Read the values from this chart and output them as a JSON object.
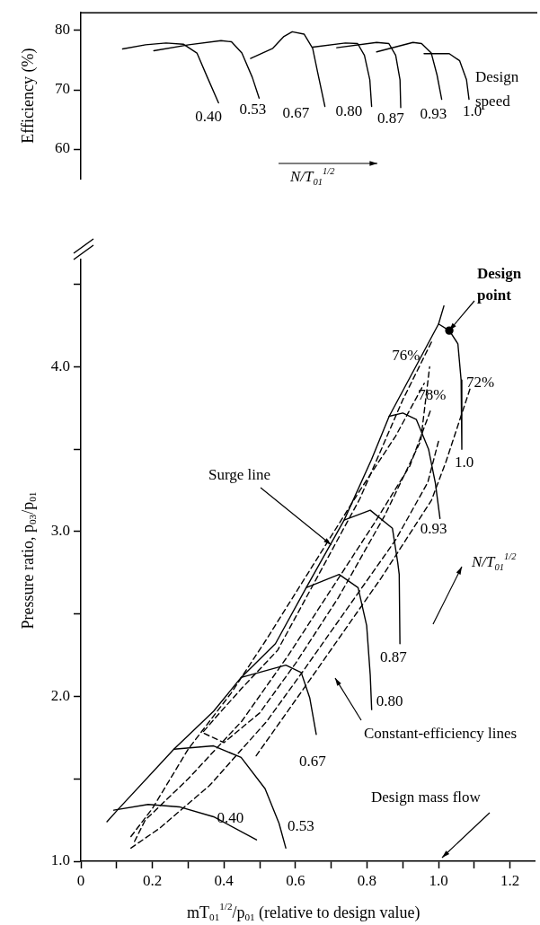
{
  "chart_data": [
    {
      "type": "line",
      "ylabel": "Efficiency (%)",
      "xlim": [
        0,
        1.27
      ],
      "ylim": [
        55,
        83
      ],
      "yticks": [
        60,
        70,
        80
      ],
      "tick_labels": "y",
      "grid": false,
      "legend": false,
      "marker": "none",
      "line_style": "solid",
      "annotations": [
        "Design speed",
        "N/T$_{01}$$^{1/2}$"
      ],
      "series": [
        {
          "name": "0.40",
          "color": "#000000",
          "x": [
            0.116,
            0.18,
            0.237,
            0.285,
            0.323,
            0.352,
            0.383
          ],
          "values": [
            76.9,
            77.6,
            77.9,
            77.7,
            76.2,
            72.1,
            67.8
          ]
        },
        {
          "name": "0.53",
          "color": "#000000",
          "x": [
            0.203,
            0.3,
            0.39,
            0.419,
            0.448,
            0.477,
            0.496
          ],
          "values": [
            76.6,
            77.6,
            78.3,
            78.1,
            76.2,
            72.1,
            68.6
          ]
        },
        {
          "name": "0.67",
          "color": "#000000",
          "x": [
            0.472,
            0.534,
            0.565,
            0.588,
            0.621,
            0.645,
            0.659,
            0.679
          ],
          "values": [
            75.3,
            77.0,
            79.0,
            79.8,
            79.4,
            77.0,
            72.9,
            67.2
          ]
        },
        {
          "name": "0.80",
          "color": "#000000",
          "x": [
            0.645,
            0.736,
            0.77,
            0.789,
            0.804,
            0.809
          ],
          "values": [
            77.2,
            77.9,
            77.8,
            75.8,
            71.7,
            67.2
          ]
        },
        {
          "name": "0.87",
          "color": "#000000",
          "x": [
            0.712,
            0.823,
            0.857,
            0.876,
            0.888,
            0.89
          ],
          "values": [
            77.1,
            78.0,
            77.8,
            75.8,
            71.7,
            67.0
          ]
        },
        {
          "name": "0.93",
          "color": "#000000",
          "x": [
            0.823,
            0.924,
            0.948,
            0.975,
            0.991,
            1.004
          ],
          "values": [
            76.4,
            78.0,
            77.8,
            76.2,
            72.5,
            68.4
          ]
        },
        {
          "name": "1.0",
          "color": "#000000",
          "x": [
            0.955,
            1.025,
            1.054,
            1.073,
            1.08
          ],
          "values": [
            76.1,
            76.1,
            74.9,
            71.7,
            68.4
          ]
        }
      ]
    },
    {
      "type": "line",
      "xlabel": "mT$_{01}$$^{1/2}$/p$_{01}$ (relative to design value)",
      "ylabel": "Pressure ratio, p$_{03}$/p$_{01}$",
      "xlim": [
        0,
        1.27
      ],
      "ylim": [
        1,
        4.65
      ],
      "xticks": [
        0,
        {
          "value": 0.1,
          "label": null
        },
        0.2,
        {
          "value": 0.3,
          "label": null
        },
        0.4,
        {
          "value": 0.5,
          "label": null
        },
        0.6,
        {
          "value": 0.7,
          "label": null
        },
        0.8,
        {
          "value": 0.9,
          "label": null
        },
        {
          "value": 1,
          "label": "1.0"
        },
        {
          "value": 1.1,
          "label": null
        },
        1.2
      ],
      "yticks": [
        {
          "value": 1,
          "label": "1.0"
        },
        {
          "value": 1.5,
          "label": null
        },
        {
          "value": 2,
          "label": "2.0"
        },
        {
          "value": 2.5,
          "label": null
        },
        {
          "value": 3,
          "label": "3.0"
        },
        {
          "value": 3.5,
          "label": null
        },
        {
          "value": 4,
          "label": "4.0"
        },
        {
          "value": 4.5,
          "label": null
        }
      ],
      "grid": false,
      "legend": false,
      "marker": "none",
      "line_style": "solid",
      "annotations": [
        {
          "text": "Design point",
          "x": 1.03,
          "y": 4.22
        },
        {
          "text": "Surge line",
          "x": 0.7,
          "y": 2.92
        },
        "N/T$_{01}$$^{1/2}$",
        "Constant-efficiency lines",
        "Design mass flow"
      ],
      "series": [
        {
          "name": "0.40",
          "color": "#000000",
          "x": [
            0.092,
            0.188,
            0.275,
            0.371,
            0.491
          ],
          "values": [
            1.31,
            1.345,
            1.33,
            1.27,
            1.13
          ]
        },
        {
          "name": "0.53",
          "color": "#000000",
          "x": [
            0.26,
            0.371,
            0.448,
            0.515,
            0.554,
            0.573
          ],
          "values": [
            1.68,
            1.7,
            1.63,
            1.44,
            1.23,
            1.08
          ]
        },
        {
          "name": "0.67",
          "color": "#000000",
          "x": [
            0.448,
            0.573,
            0.616,
            0.64,
            0.658
          ],
          "values": [
            2.115,
            2.19,
            2.145,
            1.99,
            1.77
          ]
        },
        {
          "name": "0.80",
          "color": "#000000",
          "x": [
            0.63,
            0.722,
            0.775,
            0.799,
            0.809,
            0.813
          ],
          "values": [
            2.66,
            2.74,
            2.66,
            2.43,
            2.13,
            1.92
          ]
        },
        {
          "name": "0.87",
          "color": "#000000",
          "x": [
            0.736,
            0.809,
            0.871,
            0.886,
            0.89,
            0.892
          ],
          "values": [
            3.07,
            3.13,
            3.02,
            2.81,
            2.74,
            2.32
          ]
        },
        {
          "name": "0.93",
          "color": "#000000",
          "x": [
            0.862,
            0.9,
            0.938,
            0.972,
            0.991,
            1.004
          ],
          "values": [
            3.7,
            3.72,
            3.68,
            3.5,
            3.295,
            3.08
          ]
        },
        {
          "name": "1.0",
          "color": "#000000",
          "x": [
            1.0,
            1.03,
            1.054,
            1.063,
            1.065
          ],
          "values": [
            4.26,
            4.22,
            4.14,
            3.92,
            3.5
          ]
        },
        {
          "color": "#000000",
          "x": [
            0.073,
            0.102,
            0.26,
            0.371,
            0.448,
            0.544,
            0.63,
            0.736,
            0.813,
            0.862,
            1.0,
            1.015
          ],
          "values": [
            1.24,
            1.31,
            1.68,
            1.91,
            2.115,
            2.32,
            2.66,
            3.07,
            3.44,
            3.7,
            4.26,
            4.37
          ]
        },
        {
          "name": "72%",
          "color": "#000000",
          "line_style": "dashed",
          "x": [
            0.49,
            0.64,
            0.84,
            0.98,
            1.02,
            1.09
          ],
          "values": [
            1.64,
            2.1,
            2.72,
            3.19,
            3.42,
            3.88
          ]
        },
        {
          "color": "#000000",
          "line_style": "dashed",
          "x": [
            0.14,
            0.22,
            0.36,
            0.52,
            0.62,
            0.75,
            0.88,
            0.97,
            1.0
          ],
          "values": [
            1.08,
            1.2,
            1.46,
            1.85,
            2.15,
            2.55,
            2.95,
            3.3,
            3.55
          ]
        },
        {
          "color": "#000000",
          "line_style": "dashed",
          "x": [
            0.15,
            0.18,
            0.3,
            0.45,
            0.58,
            0.7,
            0.82,
            0.92,
            0.98
          ],
          "values": [
            1.12,
            1.25,
            1.5,
            1.85,
            2.25,
            2.65,
            3.05,
            3.4,
            3.75
          ]
        },
        {
          "name": "78%",
          "color": "#000000",
          "line_style": "dashed",
          "x": [
            0.14,
            0.2,
            0.3,
            0.42,
            0.52,
            0.65,
            0.78,
            0.88,
            0.93,
            0.96
          ],
          "values": [
            1.15,
            1.32,
            1.68,
            2.02,
            2.35,
            2.8,
            3.25,
            3.58,
            3.78,
            3.9
          ]
        },
        {
          "name": "76%",
          "color": "#000000",
          "line_style": "dashed",
          "x": [
            0.98,
            0.9,
            0.78,
            0.66,
            0.55,
            0.45,
            0.38,
            0.34,
            0.4,
            0.5,
            0.6,
            0.72,
            0.85,
            0.95,
            0.975
          ],
          "values": [
            4.15,
            3.8,
            3.2,
            2.72,
            2.28,
            2.05,
            1.88,
            1.78,
            1.72,
            1.9,
            2.2,
            2.6,
            3.1,
            3.55,
            4.0
          ]
        },
        {
          "type": "scatter",
          "marker": "circle",
          "color": "#000000",
          "x": [
            1.03
          ],
          "values": [
            4.22
          ]
        }
      ]
    }
  ]
}
